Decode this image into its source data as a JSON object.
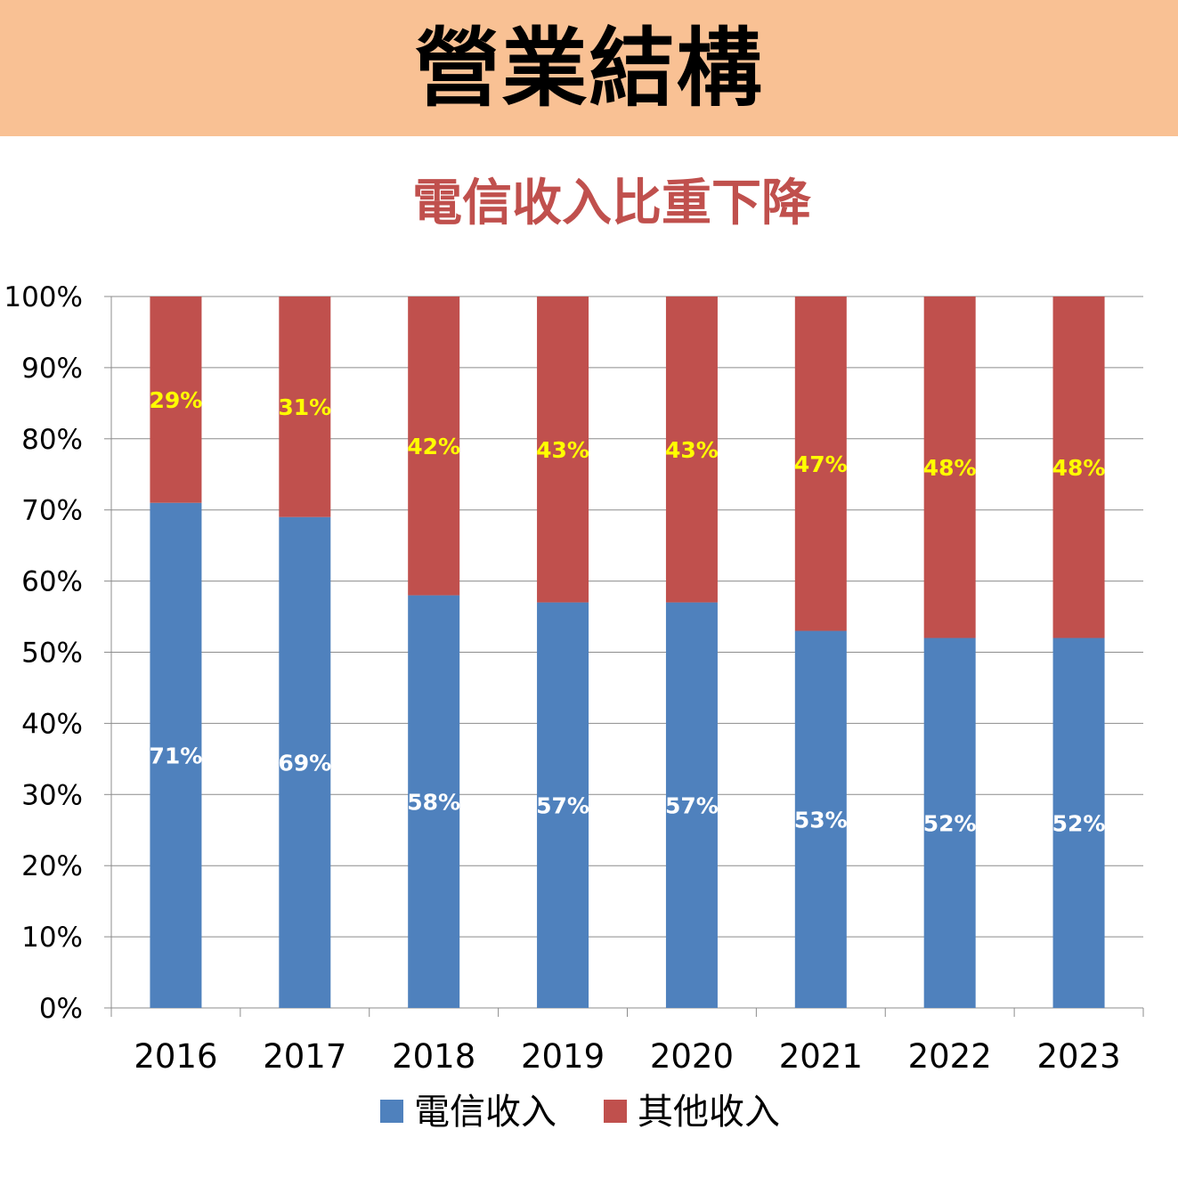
{
  "header": {
    "title": "營業結構"
  },
  "chart_data": {
    "type": "bar",
    "stacked": true,
    "title": "電信收入比重下降",
    "categories": [
      "2016",
      "2017",
      "2018",
      "2019",
      "2020",
      "2021",
      "2022",
      "2023"
    ],
    "series": [
      {
        "name": "電信收入",
        "color": "#4f81bd",
        "label_color": "#ffffff",
        "values": [
          71,
          69,
          58,
          57,
          57,
          53,
          52,
          52
        ],
        "labels": [
          "71%",
          "69%",
          "58%",
          "57%",
          "57%",
          "53%",
          "52%",
          "52%"
        ]
      },
      {
        "name": "其他收入",
        "color": "#c0504d",
        "label_color": "#ffff00",
        "values": [
          29,
          31,
          42,
          43,
          43,
          47,
          48,
          48
        ],
        "labels": [
          "29%",
          "31%",
          "42%",
          "43%",
          "43%",
          "47%",
          "48%",
          "48%"
        ]
      }
    ],
    "ylim": [
      0,
      100
    ],
    "yticks": [
      "0%",
      "10%",
      "20%",
      "30%",
      "40%",
      "50%",
      "60%",
      "70%",
      "80%",
      "90%",
      "100%"
    ],
    "grid": true,
    "legend": "bottom",
    "title_color": "#c0504d"
  }
}
